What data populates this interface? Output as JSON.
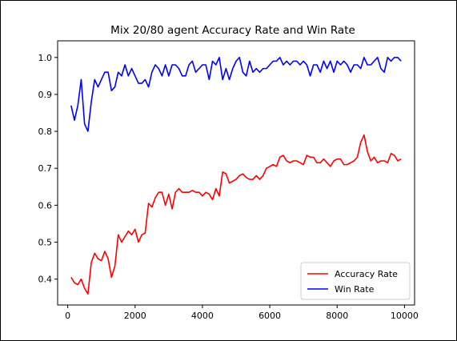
{
  "chart_data": {
    "type": "line",
    "title": "Mix 20/80 agent Accuracy Rate and Win Rate",
    "xlabel": "",
    "ylabel": "",
    "xlim": [
      -300,
      10300
    ],
    "ylim": [
      0.33,
      1.045
    ],
    "xticks": [
      0,
      2000,
      4000,
      6000,
      8000,
      10000
    ],
    "xtick_labels": [
      "0",
      "2000",
      "4000",
      "6000",
      "8000",
      "10000"
    ],
    "yticks": [
      0.4,
      0.5,
      0.6,
      0.7,
      0.8,
      0.9,
      1.0
    ],
    "ytick_labels": [
      "0.4",
      "0.5",
      "0.6",
      "0.7",
      "0.8",
      "0.9",
      "1.0"
    ],
    "grid": false,
    "legend_position": "lower-right",
    "x": [
      100,
      200,
      300,
      400,
      500,
      600,
      700,
      800,
      900,
      1000,
      1100,
      1200,
      1300,
      1400,
      1500,
      1600,
      1700,
      1800,
      1900,
      2000,
      2100,
      2200,
      2300,
      2400,
      2500,
      2600,
      2700,
      2800,
      2900,
      3000,
      3100,
      3200,
      3300,
      3400,
      3500,
      3600,
      3700,
      3800,
      3900,
      4000,
      4100,
      4200,
      4300,
      4400,
      4500,
      4600,
      4700,
      4800,
      4900,
      5000,
      5100,
      5200,
      5300,
      5400,
      5500,
      5600,
      5700,
      5800,
      5900,
      6000,
      6100,
      6200,
      6300,
      6400,
      6500,
      6600,
      6700,
      6800,
      6900,
      7000,
      7100,
      7200,
      7300,
      7400,
      7500,
      7600,
      7700,
      7800,
      7900,
      8000,
      8100,
      8200,
      8300,
      8400,
      8500,
      8600,
      8700,
      8800,
      8900,
      9000,
      9100,
      9200,
      9300,
      9400,
      9500,
      9600,
      9700,
      9800,
      9900
    ],
    "series": [
      {
        "name": "Accuracy Rate",
        "color": "#ff0000",
        "values": [
          0.405,
          0.39,
          0.385,
          0.4,
          0.375,
          0.36,
          0.445,
          0.47,
          0.455,
          0.45,
          0.475,
          0.455,
          0.405,
          0.435,
          0.52,
          0.5,
          0.515,
          0.53,
          0.52,
          0.535,
          0.5,
          0.52,
          0.525,
          0.605,
          0.595,
          0.62,
          0.635,
          0.635,
          0.6,
          0.63,
          0.59,
          0.635,
          0.645,
          0.635,
          0.635,
          0.635,
          0.64,
          0.635,
          0.635,
          0.625,
          0.635,
          0.63,
          0.615,
          0.645,
          0.625,
          0.69,
          0.685,
          0.66,
          0.665,
          0.67,
          0.68,
          0.685,
          0.675,
          0.67,
          0.67,
          0.68,
          0.67,
          0.68,
          0.7,
          0.705,
          0.71,
          0.705,
          0.73,
          0.735,
          0.72,
          0.715,
          0.72,
          0.72,
          0.715,
          0.71,
          0.735,
          0.73,
          0.73,
          0.715,
          0.715,
          0.725,
          0.715,
          0.705,
          0.72,
          0.725,
          0.725,
          0.71,
          0.71,
          0.715,
          0.72,
          0.73,
          0.77,
          0.79,
          0.745,
          0.72,
          0.73,
          0.715,
          0.72,
          0.72,
          0.715,
          0.74,
          0.735,
          0.72,
          0.725
        ]
      },
      {
        "name": "Win Rate",
        "color": "#0000ff",
        "values": [
          0.87,
          0.83,
          0.87,
          0.94,
          0.82,
          0.8,
          0.88,
          0.94,
          0.92,
          0.94,
          0.96,
          0.96,
          0.91,
          0.92,
          0.96,
          0.95,
          0.98,
          0.95,
          0.97,
          0.95,
          0.93,
          0.93,
          0.94,
          0.92,
          0.96,
          0.98,
          0.97,
          0.95,
          0.98,
          0.95,
          0.98,
          0.98,
          0.97,
          0.95,
          0.95,
          0.98,
          0.99,
          0.96,
          0.97,
          0.98,
          0.98,
          0.94,
          0.99,
          0.98,
          1.0,
          0.94,
          0.97,
          0.94,
          0.97,
          0.99,
          1.0,
          0.96,
          0.95,
          0.99,
          0.96,
          0.97,
          0.96,
          0.97,
          0.97,
          0.98,
          0.99,
          0.99,
          1.0,
          0.98,
          0.99,
          0.98,
          0.99,
          0.99,
          0.98,
          0.99,
          0.98,
          0.95,
          0.98,
          0.98,
          0.96,
          0.99,
          0.97,
          0.99,
          0.96,
          0.99,
          0.98,
          0.99,
          0.98,
          0.96,
          0.98,
          0.98,
          0.97,
          1.0,
          0.98,
          0.98,
          0.99,
          1.0,
          0.97,
          0.96,
          1.0,
          0.99,
          1.0,
          1.0,
          0.99
        ]
      }
    ]
  }
}
